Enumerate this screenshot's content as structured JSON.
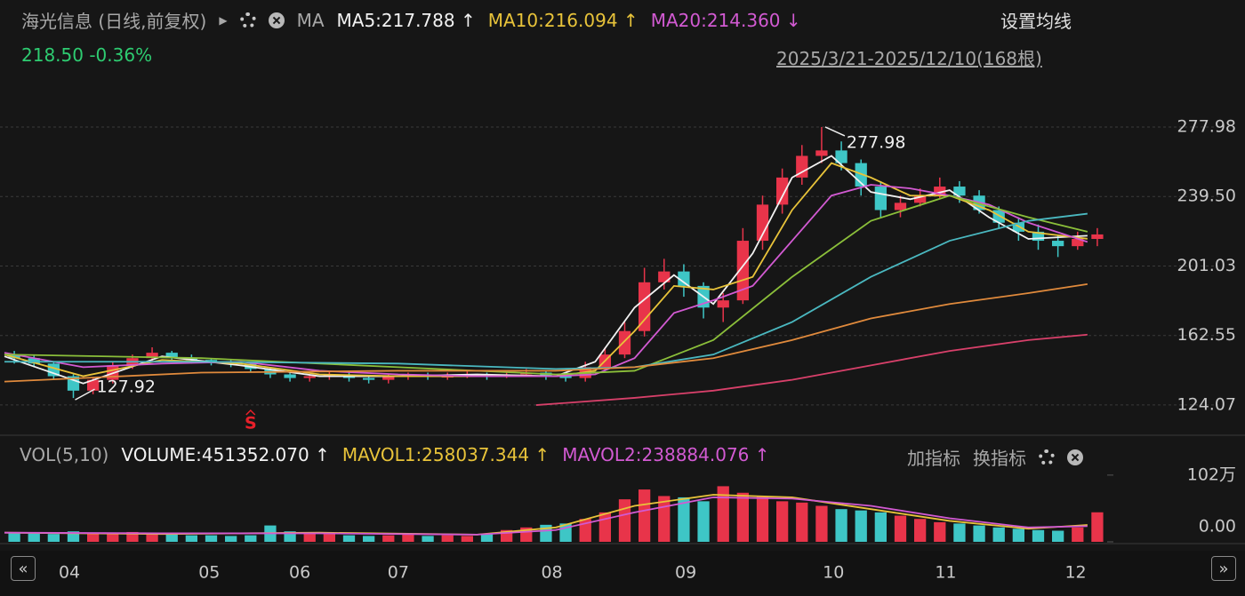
{
  "header": {
    "title": "海光信息 (日线,前复权)",
    "ma_label": "MA",
    "settings": "设置均线",
    "price": "218.50 -0.36%",
    "range": "2025/3/21-2025/12/10(168根)"
  },
  "toolbar": {
    "add": "加指标",
    "switch": "换指标"
  },
  "chart_data": [
    {
      "type": "candlestick",
      "open": [
        152,
        150,
        147,
        140,
        132,
        138,
        146,
        150,
        153,
        150,
        149,
        148,
        147,
        144,
        141,
        139,
        140,
        141,
        139,
        138,
        140,
        141,
        140,
        140,
        141,
        140,
        141,
        142,
        140,
        139,
        145,
        152,
        165,
        192,
        198,
        190,
        178,
        182,
        215,
        235,
        250,
        262,
        265,
        258,
        245,
        232,
        236,
        240,
        245,
        240,
        232,
        225,
        220,
        215,
        212,
        216
      ],
      "high": [
        154,
        152,
        148,
        141,
        139,
        148,
        152,
        156,
        154,
        152,
        150,
        149,
        148,
        145,
        142,
        141,
        143,
        142,
        140,
        141,
        142,
        142,
        142,
        143,
        142,
        142,
        144,
        143,
        141,
        148,
        156,
        170,
        200,
        205,
        202,
        192,
        186,
        222,
        240,
        255,
        268,
        277.98,
        270,
        260,
        248,
        240,
        244,
        250,
        248,
        243,
        234,
        228,
        224,
        218,
        220,
        222
      ],
      "low": [
        147,
        145,
        138,
        127.92,
        130,
        136,
        144,
        148,
        148,
        147,
        146,
        145,
        142,
        139,
        137,
        137,
        138,
        137,
        136,
        136,
        138,
        138,
        138,
        139,
        138,
        139,
        140,
        138,
        137,
        137,
        143,
        150,
        162,
        188,
        184,
        172,
        170,
        180,
        210,
        230,
        246,
        258,
        254,
        240,
        228,
        228,
        234,
        238,
        236,
        230,
        222,
        215,
        210,
        206,
        210,
        212
      ],
      "close": [
        150,
        147,
        140,
        132,
        138,
        146,
        150,
        153,
        150,
        149,
        148,
        147,
        144,
        141,
        139,
        140,
        141,
        139,
        138,
        140,
        141,
        140,
        140,
        141,
        140,
        141,
        142,
        140,
        139,
        145,
        152,
        165,
        192,
        198,
        190,
        178,
        182,
        215,
        235,
        250,
        262,
        265,
        258,
        245,
        232,
        236,
        240,
        245,
        240,
        232,
        225,
        220,
        215,
        212,
        216,
        218.5
      ],
      "up_color": "#e8344a",
      "down_color": "#3ec6c6",
      "xlim": [
        0,
        56
      ],
      "xticks": [
        {
          "value": 3.3,
          "label": "04"
        },
        {
          "value": 10.4,
          "label": "05"
        },
        {
          "value": 15.0,
          "label": "06"
        },
        {
          "value": 20.0,
          "label": "07"
        },
        {
          "value": 27.8,
          "label": "08"
        },
        {
          "value": 34.6,
          "label": "09"
        },
        {
          "value": 42.1,
          "label": "10"
        },
        {
          "value": 47.8,
          "label": "11"
        },
        {
          "value": 54.4,
          "label": "12"
        }
      ],
      "ylim": [
        108.3,
        306.5
      ],
      "yticks": [
        124.07,
        162.55,
        201.03,
        {
          "value": 239.5,
          "label": "239.50"
        },
        277.98
      ],
      "grid": true,
      "markers": [
        {
          "label": "S",
          "x": 12,
          "color": "#e8202a"
        }
      ],
      "series": [
        {
          "name": "MA5:217.788 ↑",
          "color": "#f2f2f2",
          "x": [
            0,
            4,
            8,
            12,
            16,
            20,
            24,
            28,
            30,
            32,
            34,
            36,
            38,
            40,
            42,
            44,
            46,
            48,
            50,
            52,
            55
          ],
          "values": [
            151,
            136,
            151,
            146,
            140,
            140,
            141,
            140,
            148,
            178,
            196,
            180,
            208,
            250,
            262,
            242,
            238,
            243,
            228,
            216,
            217.788
          ]
        },
        {
          "name": "MA10:216.094 ↑",
          "color": "#e8c33a",
          "x": [
            0,
            4,
            8,
            12,
            16,
            20,
            24,
            28,
            30,
            32,
            34,
            36,
            38,
            40,
            42,
            44,
            46,
            48,
            50,
            52,
            55
          ],
          "values": [
            152,
            140,
            149,
            147,
            141,
            140,
            140,
            140,
            143,
            165,
            190,
            188,
            195,
            232,
            258,
            250,
            240,
            240,
            232,
            220,
            216.094
          ]
        },
        {
          "name": "MA20:214.360 ↓",
          "color": "#d25ad2",
          "x": [
            0,
            4,
            8,
            12,
            16,
            20,
            24,
            28,
            30,
            32,
            34,
            36,
            38,
            40,
            42,
            44,
            46,
            48,
            50,
            52,
            55
          ],
          "values": [
            153,
            145,
            147,
            148,
            143,
            141,
            140,
            140,
            141,
            150,
            175,
            182,
            190,
            215,
            240,
            246,
            244,
            240,
            235,
            225,
            214.36
          ]
        },
        {
          "color": "#8bbf3a",
          "x": [
            0,
            10,
            20,
            28,
            32,
            36,
            40,
            44,
            48,
            52,
            55
          ],
          "values": [
            152,
            150,
            145,
            141,
            143,
            160,
            195,
            226,
            240,
            228,
            220
          ]
        },
        {
          "color": "#4ab8c0",
          "x": [
            0,
            10,
            20,
            28,
            32,
            36,
            40,
            44,
            48,
            52,
            55
          ],
          "values": [
            148,
            148,
            147,
            144,
            145,
            152,
            170,
            195,
            215,
            226,
            230
          ]
        },
        {
          "color": "#e08a3c",
          "x": [
            0,
            10,
            20,
            28,
            32,
            36,
            40,
            44,
            48,
            52,
            55
          ],
          "values": [
            137,
            142,
            143,
            143,
            145,
            150,
            160,
            172,
            180,
            186,
            191
          ]
        },
        {
          "color": "#d8406a",
          "x": [
            27,
            32,
            36,
            40,
            44,
            48,
            52,
            55
          ],
          "values": [
            124,
            128,
            132,
            138,
            146,
            154,
            160,
            163
          ]
        }
      ]
    },
    {
      "type": "bar",
      "title": "VOL(5,10)",
      "xlim": [
        0,
        56
      ],
      "ylim": [
        0,
        110
      ],
      "yticks": [
        {
          "value": 102,
          "label": "102万"
        },
        {
          "value": 0,
          "label": "0.00"
        }
      ],
      "series": [
        {
          "name": "VOLUME:451352.070 ↑",
          "color": "#f2f2f2",
          "values": [
            14,
            13,
            12,
            16,
            14,
            13,
            15,
            12,
            11,
            10,
            10,
            9,
            10,
            25,
            16,
            14,
            12,
            10,
            9,
            10,
            11,
            9,
            10,
            9,
            12,
            18,
            22,
            26,
            28,
            35,
            45,
            65,
            80,
            70,
            68,
            62,
            85,
            75,
            70,
            62,
            60,
            55,
            50,
            48,
            45,
            40,
            35,
            30,
            28,
            25,
            22,
            20,
            18,
            17,
            22,
            45.1352
          ]
        },
        {
          "name": "MAVOL1:258037.344 ↑",
          "color": "#e8c33a",
          "x": [
            0,
            8,
            16,
            24,
            28,
            32,
            36,
            40,
            44,
            48,
            52,
            55
          ],
          "values": [
            14,
            12,
            14,
            11,
            22,
            55,
            72,
            68,
            50,
            32,
            20,
            25.8
          ]
        },
        {
          "name": "MAVOL2:238884.076 ↑",
          "color": "#d25ad2",
          "x": [
            0,
            8,
            16,
            24,
            28,
            32,
            36,
            40,
            44,
            48,
            52,
            55
          ],
          "values": [
            14,
            13,
            13,
            11,
            18,
            45,
            68,
            66,
            55,
            36,
            22,
            23.9
          ]
        }
      ]
    }
  ]
}
